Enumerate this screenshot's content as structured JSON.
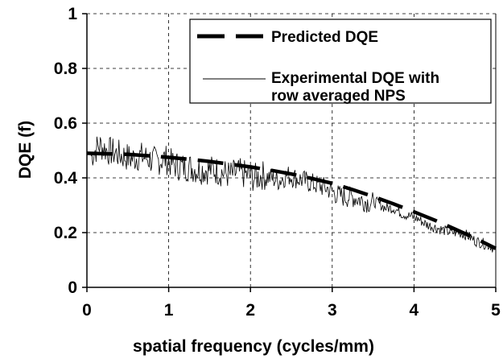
{
  "chart_data": {
    "type": "line",
    "title": "",
    "xlabel": "spatial frequency (cycles/mm)",
    "ylabel": "DQE (f)",
    "xlim": [
      0,
      5
    ],
    "ylim": [
      0,
      1
    ],
    "x_ticks": [
      "0",
      "1",
      "2",
      "3",
      "4",
      "5"
    ],
    "y_ticks": [
      "0",
      "0.2",
      "0.4",
      "0.6",
      "0.8",
      "1"
    ],
    "grid": true,
    "legend_position": "top-right",
    "legend": [
      {
        "label": "Predicted DQE",
        "style": "dashed-thick"
      },
      {
        "label_lines": [
          "Experimental DQE with",
          "row averaged NPS"
        ],
        "style": "thin-solid"
      }
    ],
    "series": [
      {
        "name": "Predicted DQE",
        "x": [
          0,
          0.25,
          0.5,
          0.75,
          1.0,
          1.25,
          1.5,
          1.75,
          2.0,
          2.25,
          2.5,
          2.75,
          3.0,
          3.25,
          3.5,
          3.75,
          4.0,
          4.25,
          4.5,
          4.75,
          5.0
        ],
        "y": [
          0.49,
          0.488,
          0.486,
          0.481,
          0.475,
          0.468,
          0.46,
          0.45,
          0.44,
          0.428,
          0.414,
          0.398,
          0.38,
          0.357,
          0.332,
          0.305,
          0.276,
          0.246,
          0.213,
          0.179,
          0.142
        ]
      },
      {
        "name": "Experimental DQE with row averaged NPS",
        "x": [
          0.05,
          0.15,
          0.25,
          0.35,
          0.45,
          0.55,
          0.65,
          0.75,
          0.85,
          0.95,
          1.05,
          1.15,
          1.25,
          1.35,
          1.45,
          1.55,
          1.65,
          1.75,
          1.85,
          1.95,
          2.05,
          2.15,
          2.25,
          2.35,
          2.45,
          2.55,
          2.65,
          2.75,
          2.85,
          2.95,
          3.05,
          3.15,
          3.25,
          3.35,
          3.45,
          3.55,
          3.65,
          3.75,
          3.85,
          3.95,
          4.05,
          4.15,
          4.25,
          4.35,
          4.45,
          4.55,
          4.65,
          4.75,
          4.85,
          4.95,
          5.0
        ],
        "y": [
          0.48,
          0.52,
          0.5,
          0.49,
          0.48,
          0.47,
          0.48,
          0.47,
          0.46,
          0.47,
          0.45,
          0.44,
          0.44,
          0.43,
          0.43,
          0.43,
          0.42,
          0.41,
          0.42,
          0.41,
          0.4,
          0.41,
          0.4,
          0.39,
          0.41,
          0.4,
          0.39,
          0.38,
          0.37,
          0.36,
          0.34,
          0.33,
          0.33,
          0.32,
          0.31,
          0.31,
          0.29,
          0.29,
          0.27,
          0.26,
          0.25,
          0.23,
          0.22,
          0.21,
          0.2,
          0.2,
          0.19,
          0.17,
          0.16,
          0.15,
          0.13
        ]
      }
    ]
  }
}
